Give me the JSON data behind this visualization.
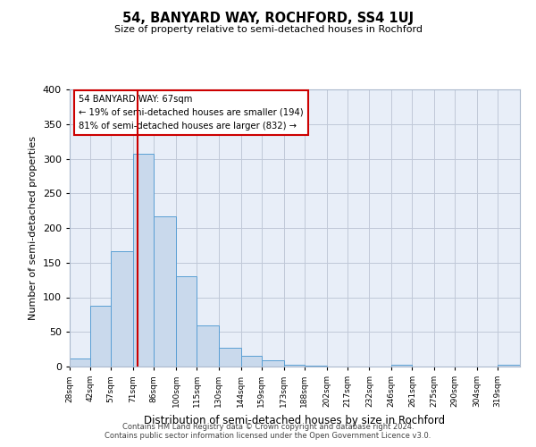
{
  "title": "54, BANYARD WAY, ROCHFORD, SS4 1UJ",
  "subtitle": "Size of property relative to semi-detached houses in Rochford",
  "xlabel": "Distribution of semi-detached houses by size in Rochford",
  "ylabel": "Number of semi-detached properties",
  "bin_labels": [
    "28sqm",
    "42sqm",
    "57sqm",
    "71sqm",
    "86sqm",
    "100sqm",
    "115sqm",
    "130sqm",
    "144sqm",
    "159sqm",
    "173sqm",
    "188sqm",
    "202sqm",
    "217sqm",
    "232sqm",
    "246sqm",
    "261sqm",
    "275sqm",
    "290sqm",
    "304sqm",
    "319sqm"
  ],
  "bin_edges": [
    21,
    35,
    49,
    64,
    78,
    93,
    107,
    122,
    137,
    151,
    166,
    180,
    195,
    209,
    224,
    239,
    253,
    268,
    282,
    297,
    311,
    326
  ],
  "counts": [
    12,
    88,
    167,
    307,
    217,
    130,
    60,
    27,
    16,
    9,
    3,
    1,
    0,
    0,
    0,
    2,
    0,
    0,
    0,
    0,
    2
  ],
  "bar_facecolor": "#c9d9ec",
  "bar_edgecolor": "#5a9fd4",
  "vline_x": 67,
  "vline_color": "#cc0000",
  "annotation_line1": "54 BANYARD WAY: 67sqm",
  "annotation_line2": "← 19% of semi-detached houses are smaller (194)",
  "annotation_line3": "81% of semi-detached houses are larger (832) →",
  "annotation_box_facecolor": "white",
  "annotation_box_edgecolor": "#cc0000",
  "ylim": [
    0,
    400
  ],
  "yticks": [
    0,
    50,
    100,
    150,
    200,
    250,
    300,
    350,
    400
  ],
  "grid_color": "#c0c8d8",
  "background_color": "#e8eef8",
  "footer_line1": "Contains HM Land Registry data © Crown copyright and database right 2024.",
  "footer_line2": "Contains public sector information licensed under the Open Government Licence v3.0."
}
